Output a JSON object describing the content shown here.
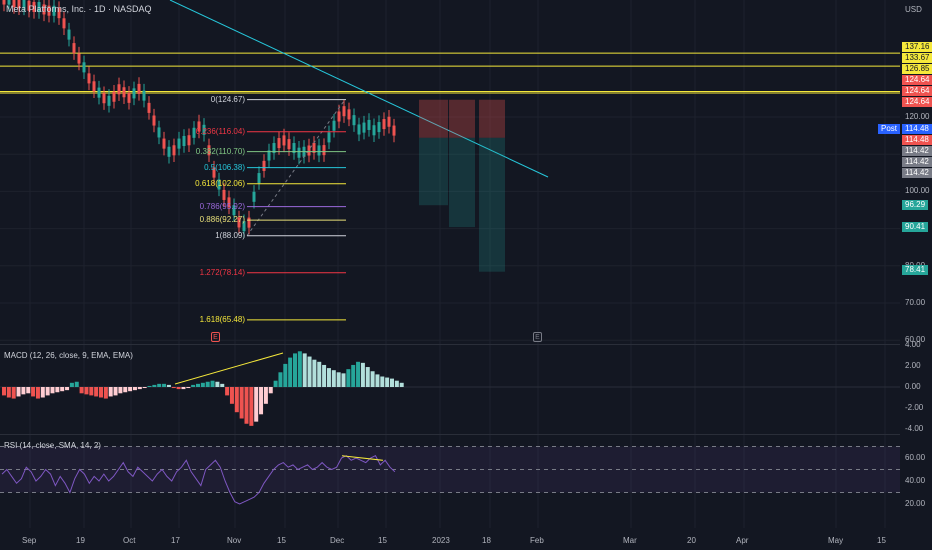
{
  "header": {
    "title": "Meta Platforms, Inc. · 1D · NASDAQ",
    "currency": "USD"
  },
  "colors": {
    "up": "#26a69a",
    "down": "#ef5350",
    "trend": "#26c6da",
    "level": "#f5e83b",
    "bg": "#131722"
  },
  "events": {
    "earnings": "E",
    "dividend": "E"
  },
  "price_axis": {
    "labels": [
      "120.00",
      "110.00",
      "100.00",
      "90.00",
      "80.00",
      "70.00",
      "60.00"
    ]
  },
  "time_axis": {
    "labels": [
      "Sep",
      "19",
      "Oct",
      "17",
      "Nov",
      "15",
      "Dec",
      "15",
      "2023",
      "18",
      "Feb",
      "Mar",
      "20",
      "Apr",
      "May",
      "15"
    ]
  },
  "price_tags": [
    {
      "text": "137.16",
      "value": 137.16,
      "bg": "#f5e83b",
      "fg": "#131722"
    },
    {
      "text": "133.67",
      "value": 133.67,
      "bg": "#f5e83b",
      "fg": "#131722"
    },
    {
      "text": "126.85",
      "value": 126.85,
      "bg": "#f5e83b",
      "fg": "#131722"
    },
    {
      "text": "124.64",
      "value": 124.64,
      "bg": "#ef5350",
      "fg": "#ffffff"
    },
    {
      "text": "124.64",
      "value": 124.64,
      "bg": "#ef5350",
      "fg": "#ffffff"
    },
    {
      "text": "124.64",
      "value": 124.64,
      "bg": "#ef5350",
      "fg": "#ffffff"
    },
    {
      "text": "114.48",
      "value": 114.48,
      "bg": "#2962ff",
      "fg": "#ffffff",
      "prefix": "Post"
    },
    {
      "text": "114.48",
      "value": 114.48,
      "bg": "#ef5350",
      "fg": "#ffffff"
    },
    {
      "text": "114.42",
      "value": 114.42,
      "bg": "#787b86",
      "fg": "#ffffff"
    },
    {
      "text": "114.42",
      "value": 114.42,
      "bg": "#787b86",
      "fg": "#ffffff"
    },
    {
      "text": "114.42",
      "value": 114.42,
      "bg": "#787b86",
      "fg": "#ffffff"
    },
    {
      "text": "96.29",
      "value": 96.29,
      "bg": "#26a69a",
      "fg": "#ffffff"
    },
    {
      "text": "90.41",
      "value": 90.41,
      "bg": "#26a69a",
      "fg": "#ffffff"
    },
    {
      "text": "78.41",
      "value": 78.41,
      "bg": "#26a69a",
      "fg": "#ffffff"
    }
  ],
  "fib_levels": [
    {
      "label": "0(124.67)",
      "value": 124.67,
      "color": "#d1d4dc"
    },
    {
      "label": "0.236(116.04)",
      "value": 116.04,
      "color": "#f23645"
    },
    {
      "label": "0.382(110.70)",
      "value": 110.7,
      "color": "#81c784"
    },
    {
      "label": "0.5(106.38)",
      "value": 106.38,
      "color": "#26c6da"
    },
    {
      "label": "0.618(102.06)",
      "value": 102.06,
      "color": "#f5e83b"
    },
    {
      "label": "0.786(95.92)",
      "value": 95.92,
      "color": "#9c6ade"
    },
    {
      "label": "0.886(92.27)",
      "value": 92.27,
      "color": "#e8e07a"
    },
    {
      "label": "1(88.09)",
      "value": 88.09,
      "color": "#d1d4dc"
    },
    {
      "label": "1.272(78.14)",
      "value": 78.14,
      "color": "#f23645"
    },
    {
      "label": "1.618(65.48)",
      "value": 65.48,
      "color": "#f5e83b"
    }
  ],
  "macd": {
    "title": "MACD (12, 26, close, 9, EMA, EMA)",
    "axis": [
      "4.00",
      "2.00",
      "0.00",
      "-2.00",
      "-4.00"
    ],
    "histogram": [
      -0.8,
      -1.0,
      -1.1,
      -0.9,
      -0.7,
      -0.6,
      -0.9,
      -1.1,
      -1.0,
      -0.8,
      -0.6,
      -0.5,
      -0.4,
      -0.3,
      0.4,
      0.5,
      -0.6,
      -0.7,
      -0.8,
      -0.9,
      -1.0,
      -1.1,
      -0.9,
      -0.8,
      -0.6,
      -0.5,
      -0.4,
      -0.3,
      -0.2,
      -0.1,
      0.1,
      0.2,
      0.3,
      0.3,
      0.2,
      -0.1,
      -0.2,
      -0.2,
      -0.1,
      0.2,
      0.3,
      0.4,
      0.5,
      0.6,
      0.5,
      0.3,
      -0.8,
      -1.6,
      -2.4,
      -3.0,
      -3.5,
      -3.7,
      -3.3,
      -2.6,
      -1.6,
      -0.6,
      0.6,
      1.4,
      2.2,
      2.8,
      3.2,
      3.4,
      3.2,
      2.9,
      2.6,
      2.4,
      2.1,
      1.8,
      1.6,
      1.4,
      1.3,
      1.7,
      2.1,
      2.4,
      2.3,
      1.9,
      1.5,
      1.2,
      1.0,
      0.9,
      0.8,
      0.6,
      0.4
    ]
  },
  "rsi": {
    "title": "RSI (14, close, SMA, 14, 2)",
    "axis": [
      "60.00",
      "40.00",
      "20.00"
    ],
    "upper": 70,
    "lower": 30,
    "values": [
      46,
      50,
      44,
      38,
      42,
      52,
      48,
      40,
      44,
      50,
      46,
      36,
      44,
      38,
      30,
      42,
      50,
      46,
      38,
      44,
      40,
      46,
      40,
      44,
      50,
      56,
      48,
      44,
      52,
      48,
      44,
      40,
      46,
      50,
      44,
      40,
      48,
      52,
      58,
      48,
      42,
      36,
      50,
      54,
      58,
      52,
      40,
      30,
      22,
      20,
      22,
      24,
      26,
      30,
      38,
      44,
      50,
      54,
      56,
      52,
      54,
      50,
      52,
      54,
      50,
      52,
      56,
      52,
      50,
      52,
      60,
      62,
      58,
      60,
      58,
      56,
      60,
      62,
      54,
      58,
      52,
      48
    ]
  }
}
